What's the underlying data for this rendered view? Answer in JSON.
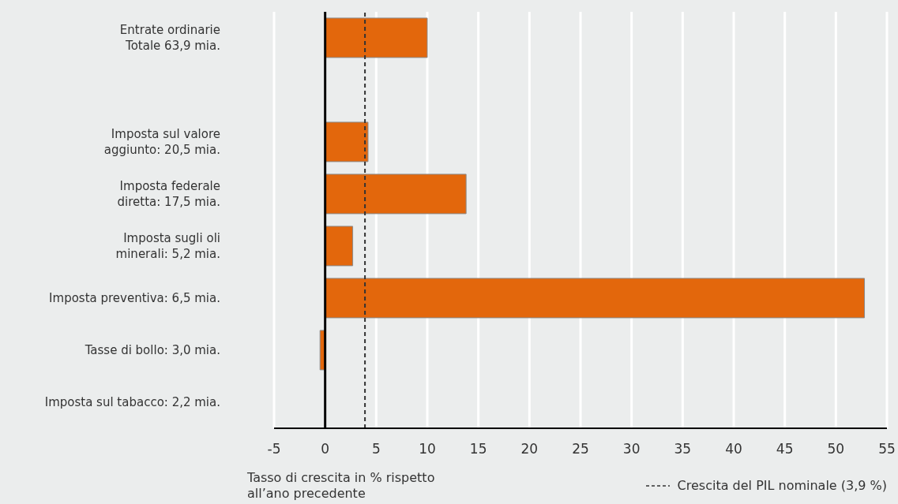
{
  "chart_data": {
    "type": "bar",
    "orientation": "horizontal",
    "categories": [
      "Entrate ordinarie\nTotale 63,9 mia.",
      null,
      "Imposta sul valore\naggiunto: 20,5 mia.",
      "Imposta federale\ndiretta: 17,5 mia.",
      "Imposta sugli oli\nminerali: 5,2 mia.",
      "Imposta preventiva: 6,5 mia.",
      "Tasse di bollo: 3,0 mia.",
      "Imposta sul tabacco: 2,2 mia."
    ],
    "values": [
      10.0,
      null,
      4.2,
      13.8,
      2.7,
      52.8,
      -0.5,
      0.0
    ],
    "color": "#e3670c",
    "xlim": [
      -5,
      55
    ],
    "xticks": [
      -5,
      0,
      5,
      10,
      15,
      20,
      25,
      30,
      35,
      40,
      45,
      50,
      55
    ],
    "xlabel": "Tasso di crescita in % rispetto\nall’ano precedente",
    "ref_lines": [
      {
        "axis": "x",
        "value": 3.9,
        "label": "Crescita del PIL nominale (3,9 %)",
        "color": "#333333",
        "line_style": "dashed"
      }
    ],
    "grid": "x",
    "legend": "bottom right"
  }
}
